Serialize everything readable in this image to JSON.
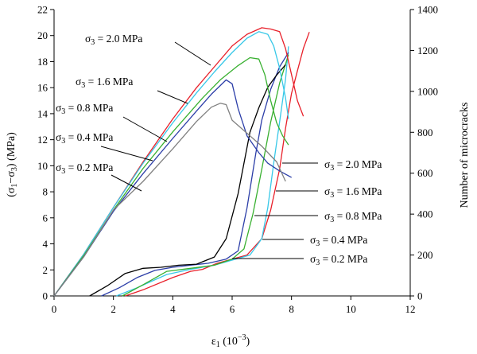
{
  "chart_data": {
    "type": "line",
    "xlabel_base": "ε",
    "xlabel_sub": "1",
    "xlabel_unit": " (10",
    "xlabel_exp": "−3",
    "xlabel_close": ")",
    "ylabel_left": "(σ1−σ3) (MPa)",
    "ylabel_right": "Number of microcracks",
    "xlim": [
      0,
      12
    ],
    "ylim_left": [
      0,
      22
    ],
    "ylim_right": [
      0,
      1400
    ],
    "xticks": [
      "0",
      "2",
      "4",
      "6",
      "8",
      "10",
      "12"
    ],
    "yticks_left": [
      "0",
      "2",
      "4",
      "6",
      "8",
      "10",
      "12",
      "14",
      "16",
      "18",
      "20",
      "22"
    ],
    "yticks_right": [
      "0",
      "200",
      "400",
      "600",
      "800",
      "1000",
      "1200",
      "1400"
    ],
    "grid": false,
    "stress_series": [
      {
        "name": "σ3 = 2.0 MPa",
        "color": "#e8202a",
        "x": [
          0,
          1.0,
          2.0,
          3.0,
          4.0,
          4.8,
          5.4,
          6.0,
          6.5,
          7.0,
          7.3,
          7.6,
          7.8,
          8.0,
          8.2,
          8.4
        ],
        "y": [
          0,
          3.2,
          6.8,
          10.3,
          13.6,
          16.0,
          17.6,
          19.2,
          20.1,
          20.6,
          20.5,
          20.3,
          19.0,
          17.0,
          15.0,
          13.8
        ]
      },
      {
        "name": "σ3 = 1.6 MPa",
        "color": "#38c8e8",
        "x": [
          0,
          1.0,
          2.0,
          3.0,
          4.0,
          4.8,
          5.4,
          6.0,
          6.5,
          6.9,
          7.2,
          7.4,
          7.6,
          7.8,
          7.9
        ],
        "y": [
          0,
          3.2,
          6.8,
          10.2,
          13.3,
          15.6,
          17.2,
          18.7,
          19.8,
          20.3,
          20.1,
          19.2,
          17.5,
          15.2,
          13.6
        ]
      },
      {
        "name": "σ3 = 0.8 MPa",
        "color": "#38b030",
        "x": [
          0,
          1.0,
          2.0,
          3.0,
          4.0,
          5.0,
          5.6,
          6.2,
          6.6,
          6.9,
          7.1,
          7.3,
          7.5,
          7.7,
          7.9
        ],
        "y": [
          0,
          3.1,
          6.6,
          9.8,
          12.6,
          15.2,
          16.6,
          17.7,
          18.3,
          18.2,
          17.0,
          15.0,
          13.3,
          12.3,
          11.6
        ]
      },
      {
        "name": "σ3 = 0.4 MPa",
        "color": "#2c3ea8",
        "x": [
          0,
          1.0,
          2.0,
          3.0,
          4.0,
          4.8,
          5.3,
          5.8,
          6.0,
          6.2,
          6.5,
          6.9,
          7.2,
          7.6,
          8.0
        ],
        "y": [
          0,
          3.0,
          6.5,
          9.4,
          12.1,
          14.2,
          15.5,
          16.6,
          16.3,
          14.4,
          12.3,
          11.0,
          10.2,
          9.6,
          9.1
        ]
      },
      {
        "name": "σ3 = 0.2 MPa",
        "color": "#808080",
        "x": [
          0,
          1.0,
          2.0,
          3.0,
          4.0,
          4.8,
          5.3,
          5.6,
          5.8,
          6.0,
          6.5,
          7.0,
          7.5,
          7.8
        ],
        "y": [
          0,
          3.0,
          6.6,
          8.8,
          11.3,
          13.4,
          14.5,
          14.8,
          14.7,
          13.5,
          12.5,
          11.5,
          10.3,
          8.8
        ]
      }
    ],
    "crack_series": [
      {
        "name": "σ3 = 2.0 MPa",
        "color": "#e8202a",
        "x": [
          2.4,
          3.0,
          4.0,
          4.6,
          5.0,
          5.5,
          6.0,
          6.5,
          7.0,
          7.3,
          7.6,
          7.8,
          8.0,
          8.2,
          8.4,
          8.6
        ],
        "y": [
          0,
          30,
          90,
          120,
          130,
          160,
          180,
          200,
          280,
          420,
          620,
          820,
          990,
          1100,
          1210,
          1290
        ]
      },
      {
        "name": "σ3 = 1.6 MPa",
        "color": "#38c8e8",
        "x": [
          2.1,
          2.8,
          3.8,
          4.6,
          5.4,
          6.0,
          6.6,
          7.0,
          7.2,
          7.4,
          7.6,
          7.8,
          7.9
        ],
        "y": [
          0,
          40,
          105,
          130,
          150,
          175,
          200,
          280,
          430,
          650,
          850,
          1060,
          1220
        ]
      },
      {
        "name": "σ3 = 0.8 MPa",
        "color": "#38b030",
        "x": [
          2.3,
          3.0,
          3.8,
          4.6,
          5.4,
          6.0,
          6.4,
          6.7,
          7.0,
          7.3,
          7.6,
          7.9
        ],
        "y": [
          0,
          55,
          120,
          135,
          150,
          180,
          230,
          400,
          620,
          850,
          1040,
          1180
        ]
      },
      {
        "name": "σ3 = 0.4 MPa",
        "color": "#2c3ea8",
        "x": [
          1.6,
          2.2,
          2.8,
          3.4,
          4.0,
          4.6,
          5.2,
          5.8,
          6.2,
          6.5,
          6.8,
          7.0,
          7.3,
          7.6,
          7.9
        ],
        "y": [
          0,
          40,
          90,
          125,
          140,
          150,
          160,
          180,
          220,
          430,
          700,
          860,
          1010,
          1120,
          1190
        ]
      },
      {
        "name": "σ3 = 0.2 MPa",
        "color": "#000000",
        "x": [
          1.2,
          1.8,
          2.4,
          3.0,
          3.6,
          4.2,
          4.8,
          5.4,
          5.8,
          6.2,
          6.6,
          6.9,
          7.2,
          7.5,
          7.8
        ],
        "y": [
          0,
          50,
          110,
          135,
          140,
          150,
          155,
          190,
          280,
          500,
          800,
          920,
          1020,
          1080,
          1130
        ]
      }
    ],
    "annotations_left": [
      {
        "sym": "σ",
        "sub": "3",
        "rest": " = 2.0 MPa",
        "lx": 107,
        "ly": 53,
        "line": [
          [
            220,
            53
          ],
          [
            265,
            82
          ]
        ]
      },
      {
        "sym": "σ",
        "sub": "3",
        "rest": " = 1.6 MPa",
        "lx": 95,
        "ly": 107,
        "line": [
          [
            198,
            114
          ],
          [
            236,
            130
          ]
        ]
      },
      {
        "sym": "σ",
        "sub": "3",
        "rest": " = 0.8 MPa",
        "lx": 70,
        "ly": 140,
        "line": [
          [
            155,
            147
          ],
          [
            210,
            178
          ]
        ]
      },
      {
        "sym": "σ",
        "sub": "3",
        "rest": " = 0.4 MPa",
        "lx": 70,
        "ly": 177,
        "line": [
          [
            127,
            184
          ],
          [
            192,
            202
          ]
        ]
      },
      {
        "sym": "σ",
        "sub": "3",
        "rest": " = 0.2 MPa",
        "lx": 70,
        "ly": 215,
        "line": [
          [
            140,
            220
          ],
          [
            178,
            240
          ]
        ]
      }
    ],
    "annotations_right": [
      {
        "sym": "σ",
        "sub": "3",
        "rest": " = 2.0 MPa",
        "lx": 408,
        "ly": 211,
        "line": [
          [
            400,
            205
          ],
          [
            355,
            205
          ]
        ]
      },
      {
        "sym": "σ",
        "sub": "3",
        "rest": " = 1.6 MPa",
        "lx": 408,
        "ly": 245,
        "line": [
          [
            400,
            240
          ],
          [
            347,
            240
          ]
        ]
      },
      {
        "sym": "σ",
        "sub": "3",
        "rest": " = 0.8 MPa",
        "lx": 408,
        "ly": 276,
        "line": [
          [
            400,
            271
          ],
          [
            320,
            271
          ]
        ]
      },
      {
        "sym": "σ",
        "sub": "3",
        "rest": " = 0.4 MPa",
        "lx": 390,
        "ly": 306,
        "line": [
          [
            382,
            301
          ],
          [
            330,
            301
          ]
        ]
      },
      {
        "sym": "σ",
        "sub": "3",
        "rest": " = 0.2 MPa",
        "lx": 390,
        "ly": 330,
        "line": [
          [
            382,
            325
          ],
          [
            292,
            325
          ]
        ]
      }
    ]
  }
}
